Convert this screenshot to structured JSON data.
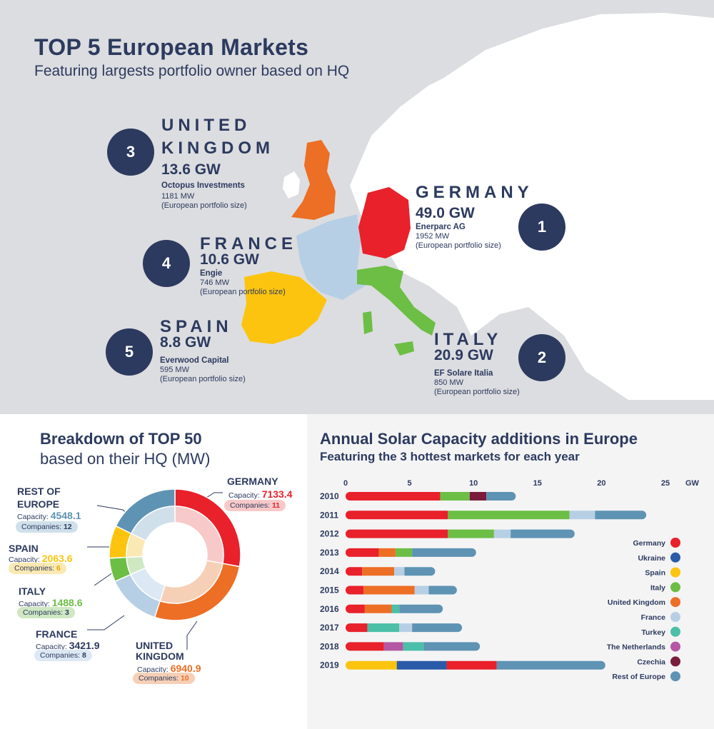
{
  "map_section": {
    "title": "TOP 5 European Markets",
    "subtitle": "Featuring largests portfolio owner based on HQ",
    "markets": [
      {
        "rank": "1",
        "country": "GERMANY",
        "capacity": "49.0 GW",
        "owner": "Enerparc AG",
        "owner_mw": "1952 MW",
        "note": "(European portfolio size)",
        "color": "#e8212b"
      },
      {
        "rank": "2",
        "country": "ITALY",
        "capacity": "20.9 GW",
        "owner": "EF Solare Italia",
        "owner_mw": "850 MW",
        "note": "(European portfolio size)",
        "color": "#6cbe45"
      },
      {
        "rank": "3",
        "country_line1": "UNITED",
        "country_line2": "KINGDOM",
        "capacity": "13.6 GW",
        "owner": "Octopus Investments",
        "owner_mw": "1181 MW",
        "note": "(European portfolio size)",
        "color": "#ed6e25"
      },
      {
        "rank": "4",
        "country": "FRANCE",
        "capacity": "10.6 GW",
        "owner": "Engie",
        "owner_mw": "746 MW",
        "note": "(European portfolio size)",
        "color": "#b7cfe4"
      },
      {
        "rank": "5",
        "country": "SPAIN",
        "capacity": "8.8 GW",
        "owner": "Everwood Capital",
        "owner_mw": "595 MW",
        "note": "(European portfolio size)",
        "color": "#fcc40f"
      }
    ]
  },
  "breakdown": {
    "title": "Breakdown of TOP 50",
    "subtitle": "based on their HQ (MW)",
    "capacity_label": "Capacity:",
    "companies_label": "Companies:",
    "items": [
      {
        "country": "GERMANY",
        "capacity": "7133.4",
        "companies": "11",
        "color": "#e8212b",
        "pill": "#f8c9c9"
      },
      {
        "country_line1": "UNITED",
        "country_line2": "KINGDOM",
        "capacity": "6940.9",
        "companies": "10",
        "color": "#ed6e25",
        "pill": "#f6d0b6"
      },
      {
        "country": "FRANCE",
        "capacity": "3421.9",
        "companies": "8",
        "color": "#b7cfe4",
        "pill": "#dce8f3"
      },
      {
        "country": "ITALY",
        "capacity": "1488.6",
        "companies": "3",
        "color": "#6cbe45",
        "pill": "#cfe8c2"
      },
      {
        "country": "SPAIN",
        "capacity": "2063.6",
        "companies": "6",
        "color": "#fcc40f",
        "pill": "#fbe9b3"
      },
      {
        "country_line1": "REST OF",
        "country_line2": "EUROPE",
        "capacity": "4548.1",
        "companies": "12",
        "color": "#5e93b3",
        "pill": "#cfe0ea"
      }
    ]
  },
  "chart_data": {
    "type": "bar",
    "orientation": "horizontal-stacked",
    "title": "Annual Solar Capacity additions in Europe",
    "subtitle": "Featuring the 3 hottest markets for each year",
    "unit": "GW",
    "xlim": [
      0,
      25
    ],
    "x_ticks": [
      "0",
      "5",
      "10",
      "15",
      "20",
      "25"
    ],
    "categories": [
      "2010",
      "2011",
      "2012",
      "2013",
      "2014",
      "2015",
      "2016",
      "2017",
      "2018",
      "2019"
    ],
    "legend_position": "right",
    "legend": [
      {
        "name": "Germany",
        "color": "#e8212b"
      },
      {
        "name": "Ukraine",
        "color": "#2a5ba8"
      },
      {
        "name": "Spain",
        "color": "#fcc40f"
      },
      {
        "name": "Italy",
        "color": "#6cbe45"
      },
      {
        "name": "United Kingdom",
        "color": "#ed6e25"
      },
      {
        "name": "France",
        "color": "#b7cfe4"
      },
      {
        "name": "Turkey",
        "color": "#4bbfa8"
      },
      {
        "name": "The Netherlands",
        "color": "#b457a4"
      },
      {
        "name": "Czechia",
        "color": "#7a1d3c"
      },
      {
        "name": "Rest of Europe",
        "color": "#5e93b3"
      }
    ],
    "bars": [
      {
        "year": "2010",
        "segments": [
          {
            "s": "Germany",
            "v": 7.4
          },
          {
            "s": "Italy",
            "v": 2.3
          },
          {
            "s": "Czechia",
            "v": 1.3
          },
          {
            "s": "Rest of Europe",
            "v": 2.3
          }
        ]
      },
      {
        "year": "2011",
        "segments": [
          {
            "s": "Germany",
            "v": 8.0
          },
          {
            "s": "Italy",
            "v": 9.5
          },
          {
            "s": "France",
            "v": 2.0
          },
          {
            "s": "Rest of Europe",
            "v": 4.0
          }
        ]
      },
      {
        "year": "2012",
        "segments": [
          {
            "s": "Germany",
            "v": 8.0
          },
          {
            "s": "Italy",
            "v": 3.6
          },
          {
            "s": "France",
            "v": 1.3
          },
          {
            "s": "Rest of Europe",
            "v": 5.0
          }
        ]
      },
      {
        "year": "2013",
        "segments": [
          {
            "s": "Germany",
            "v": 2.6
          },
          {
            "s": "United Kingdom",
            "v": 1.3
          },
          {
            "s": "Italy",
            "v": 1.3
          },
          {
            "s": "Rest of Europe",
            "v": 5.0
          }
        ]
      },
      {
        "year": "2014",
        "segments": [
          {
            "s": "Germany",
            "v": 1.3
          },
          {
            "s": "United Kingdom",
            "v": 2.5
          },
          {
            "s": "France",
            "v": 0.8
          },
          {
            "s": "Rest of Europe",
            "v": 2.4
          }
        ]
      },
      {
        "year": "2015",
        "segments": [
          {
            "s": "Germany",
            "v": 1.4
          },
          {
            "s": "United Kingdom",
            "v": 4.0
          },
          {
            "s": "France",
            "v": 1.1
          },
          {
            "s": "Rest of Europe",
            "v": 2.2
          }
        ]
      },
      {
        "year": "2016",
        "segments": [
          {
            "s": "Germany",
            "v": 1.5
          },
          {
            "s": "United Kingdom",
            "v": 2.1
          },
          {
            "s": "Turkey",
            "v": 0.6
          },
          {
            "s": "Rest of Europe",
            "v": 3.4
          }
        ]
      },
      {
        "year": "2017",
        "segments": [
          {
            "s": "Germany",
            "v": 1.7
          },
          {
            "s": "Turkey",
            "v": 2.5
          },
          {
            "s": "France",
            "v": 1.0
          },
          {
            "s": "Rest of Europe",
            "v": 3.9
          }
        ]
      },
      {
        "year": "2018",
        "segments": [
          {
            "s": "Germany",
            "v": 3.0
          },
          {
            "s": "The Netherlands",
            "v": 1.5
          },
          {
            "s": "Turkey",
            "v": 1.6
          },
          {
            "s": "Rest of Europe",
            "v": 4.4
          }
        ]
      },
      {
        "year": "2019",
        "segments": [
          {
            "s": "Spain",
            "v": 4.0
          },
          {
            "s": "Ukraine",
            "v": 3.9
          },
          {
            "s": "Germany",
            "v": 3.9
          },
          {
            "s": "Rest of Europe",
            "v": 8.5
          }
        ]
      }
    ]
  }
}
